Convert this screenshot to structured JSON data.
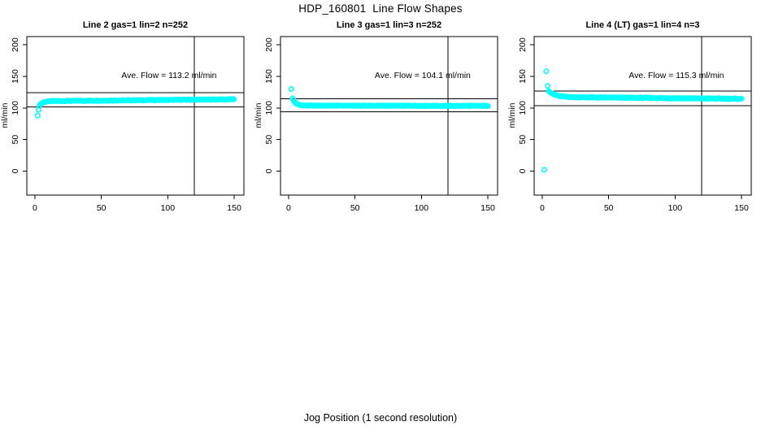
{
  "figure": {
    "title": "HDP_160801  Line Flow Shapes",
    "xlabel": "Jog Position (1 second resolution)",
    "background": "#ffffff",
    "point_color": "#00FFFF",
    "line_color": "#000000"
  },
  "chart_data": [
    {
      "type": "scatter",
      "title": "Line 2 gas=1 lin=2 n=252",
      "annotation": "Ave. Flow =  113.2  ml/min",
      "ave_flow": 113.2,
      "ylabel": "ml/min",
      "xticks": [
        0,
        50,
        100,
        150
      ],
      "yticks": [
        0,
        50,
        100,
        150,
        200
      ],
      "xlim": [
        -6.1,
        157.3
      ],
      "ylim": [
        -38,
        213
      ],
      "tolerance_lines_y": [
        124.5,
        101.9
      ],
      "vline_x": 120,
      "marker": "open-circle",
      "outlier_points": [
        [
          2,
          88
        ],
        [
          2.7,
          97
        ]
      ],
      "trend": {
        "x_start": 3.4,
        "x_end": 150,
        "step": 0.7,
        "y_start": 104.0,
        "y_plateau": 110.7,
        "tau": 2.4,
        "drift_per_x": 0.0205,
        "noise": 0.55
      }
    },
    {
      "type": "scatter",
      "title": "Line 3 gas=1 lin=3 n=252",
      "annotation": "Ave. Flow =  104.1  ml/min",
      "ave_flow": 104.1,
      "ylabel": "ml/min",
      "xticks": [
        0,
        50,
        100,
        150
      ],
      "yticks": [
        0,
        50,
        100,
        150,
        200
      ],
      "xlim": [
        -6.1,
        157.3
      ],
      "ylim": [
        -38,
        213
      ],
      "tolerance_lines_y": [
        114.5,
        93.7
      ],
      "vline_x": 120,
      "marker": "open-circle",
      "outlier_points": [
        [
          2,
          130
        ]
      ],
      "trend": {
        "x_start": 3.0,
        "x_end": 150,
        "step": 0.7,
        "y_start": 115.5,
        "y_plateau": 103.7,
        "tau": 2.2,
        "drift_per_x": -0.003,
        "noise": 0.5
      }
    },
    {
      "type": "scatter",
      "title": "Line 4 (LT) gas=1 lin=4 n=3",
      "annotation": "Ave. Flow =  115.3  ml/min",
      "ave_flow": 115.3,
      "ylabel": "ml/min",
      "xticks": [
        0,
        50,
        100,
        150
      ],
      "yticks": [
        0,
        50,
        100,
        150,
        200
      ],
      "xlim": [
        -6.1,
        157.3
      ],
      "ylim": [
        -38,
        213
      ],
      "tolerance_lines_y": [
        126.8,
        103.8
      ],
      "vline_x": 120,
      "marker": "open-circle",
      "outlier_points": [
        [
          1.5,
          2
        ],
        [
          3,
          158
        ],
        [
          4,
          135
        ]
      ],
      "trend": {
        "x_start": 5.0,
        "x_end": 150,
        "step": 0.7,
        "y_start": 127.0,
        "y_plateau": 117.3,
        "tau": 4.5,
        "drift_per_x": -0.02,
        "noise": 0.7
      }
    }
  ]
}
